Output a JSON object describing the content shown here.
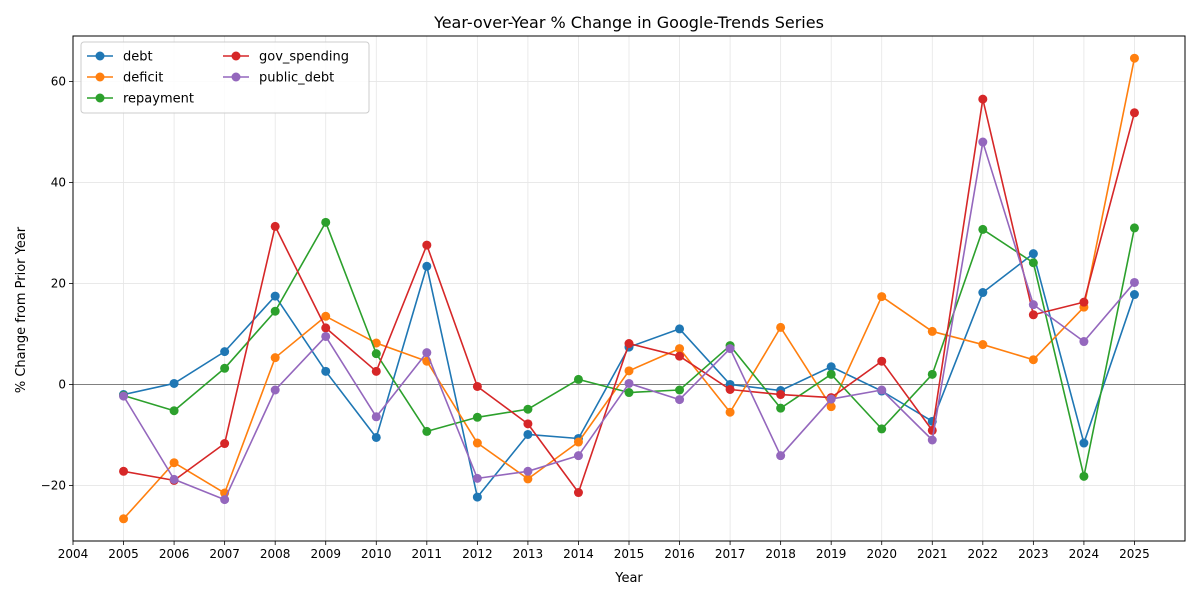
{
  "chart_data": {
    "type": "line",
    "title": "Year-over-Year % Change in Google-Trends Series",
    "xlabel": "Year",
    "ylabel": "% Change from Prior Year",
    "x": [
      2005,
      2006,
      2007,
      2008,
      2009,
      2010,
      2011,
      2012,
      2013,
      2014,
      2015,
      2016,
      2017,
      2018,
      2019,
      2020,
      2021,
      2022,
      2023,
      2024,
      2025
    ],
    "x_ticks": [
      "2004",
      "2005",
      "2006",
      "2007",
      "2008",
      "2009",
      "2010",
      "2011",
      "2012",
      "2013",
      "2014",
      "2015",
      "2016",
      "2017",
      "2018",
      "2019",
      "2020",
      "2021",
      "2022",
      "2023",
      "2024",
      "2025"
    ],
    "y_ticks": [
      "−20",
      "0",
      "20",
      "40",
      "60"
    ],
    "xlim": [
      2004,
      2026
    ],
    "ylim": [
      -31,
      69
    ],
    "grid": true,
    "zero_line": true,
    "legend_position": "top-left",
    "series": [
      {
        "name": "debt",
        "color": "#1f77b4",
        "values": [
          -2.0,
          0.2,
          6.5,
          17.5,
          2.6,
          -10.5,
          23.4,
          -22.3,
          -9.9,
          -10.7,
          7.4,
          11.0,
          0.0,
          -1.2,
          3.5,
          -1.3,
          -7.3,
          18.2,
          25.9,
          -11.6,
          17.8
        ]
      },
      {
        "name": "deficit",
        "color": "#ff7f0e",
        "values": [
          -26.6,
          -15.5,
          -21.5,
          5.3,
          13.5,
          8.2,
          4.6,
          -11.6,
          -18.7,
          -11.4,
          2.7,
          7.1,
          -5.5,
          11.3,
          -4.4,
          17.4,
          10.5,
          7.9,
          4.9,
          15.3,
          64.6
        ]
      },
      {
        "name": "repayment",
        "color": "#2ca02c",
        "values": [
          -2.2,
          -5.2,
          3.2,
          14.5,
          32.1,
          6.1,
          -9.3,
          -6.5,
          -4.9,
          1.0,
          -1.6,
          -1.1,
          7.7,
          -4.7,
          2.0,
          -8.8,
          2.0,
          30.7,
          24.1,
          -18.2,
          31.0
        ]
      },
      {
        "name": "gov_spending",
        "color": "#d62728",
        "values": [
          -17.2,
          -19.0,
          -11.7,
          31.3,
          11.2,
          2.6,
          27.6,
          -0.4,
          -7.8,
          -21.4,
          8.1,
          5.6,
          -1.0,
          -2.0,
          -2.6,
          4.6,
          -9.1,
          56.5,
          13.8,
          16.3,
          53.8
        ]
      },
      {
        "name": "public_debt",
        "color": "#9467bd",
        "values": [
          -2.3,
          -18.8,
          -22.8,
          -1.1,
          9.5,
          -6.4,
          6.3,
          -18.6,
          -17.2,
          -14.1,
          0.2,
          -3.0,
          7.1,
          -14.1,
          -2.9,
          -1.1,
          -11.0,
          48.0,
          15.8,
          8.5,
          20.2
        ]
      }
    ]
  }
}
